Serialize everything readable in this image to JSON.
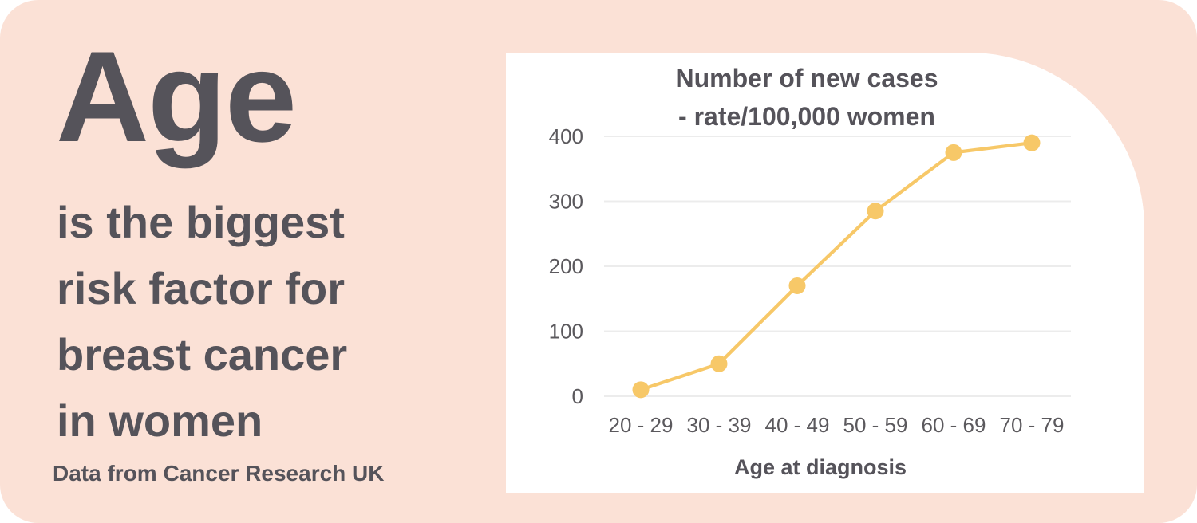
{
  "infographic": {
    "headline": "Age",
    "subheadline_lines": [
      "is the biggest",
      "risk factor for",
      "breast cancer",
      "in women"
    ],
    "source": "Data from Cancer Research UK"
  },
  "chart_data": {
    "type": "line",
    "title_lines": [
      "Number of new cases",
      "- rate/100,000 women"
    ],
    "categories": [
      "20 - 29",
      "30 - 39",
      "40 - 49",
      "50 - 59",
      "60 - 69",
      "70 - 79"
    ],
    "values": [
      10,
      50,
      170,
      285,
      375,
      390
    ],
    "xlabel": "Age at diagnosis",
    "ylabel": "",
    "ylim": [
      0,
      400
    ],
    "yticks": [
      0,
      100,
      200,
      300,
      400
    ],
    "grid": true,
    "legend": "none"
  },
  "colors": {
    "card_bg": "#FBE1D6",
    "panel_bg": "#FFFFFF",
    "text_dark": "#55535A",
    "tick_text": "#5B595D",
    "gridline": "#ECECEC",
    "accent_yellow": "#F7C868"
  }
}
